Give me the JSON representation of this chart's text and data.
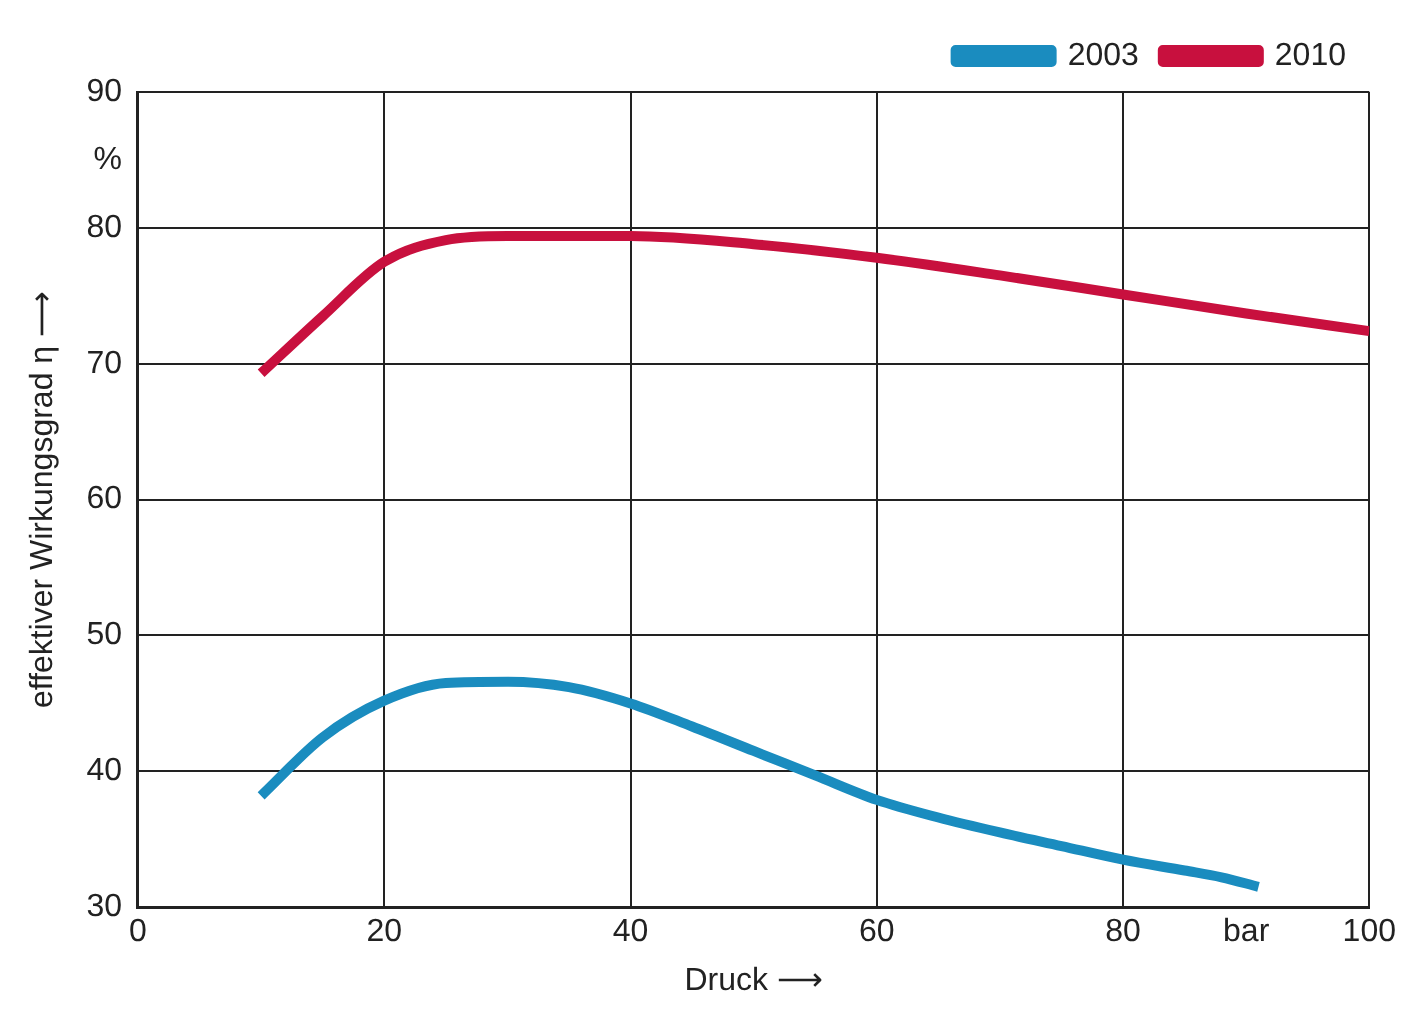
{
  "chart_data": {
    "type": "line",
    "xlabel": "Druck ⟶",
    "ylabel": "effektiver Wirkungsgrad η ⟶",
    "x": [
      10,
      15,
      20,
      25,
      30,
      35,
      40,
      45,
      50,
      55,
      60,
      65,
      70,
      75,
      80,
      85,
      88,
      91
    ],
    "series": [
      {
        "name": "2003",
        "color": "#1a8cbf",
        "values": [
          38.2,
          42.5,
          45.2,
          46.5,
          46.6,
          46.2,
          45.0,
          43.3,
          41.5,
          39.7,
          37.9,
          36.6,
          35.5,
          34.5,
          33.5,
          32.7,
          32.2,
          31.5
        ]
      },
      {
        "name": "2010",
        "color": "#c8103e",
        "x": [
          10,
          15,
          20,
          25,
          30,
          40,
          50,
          60,
          70,
          80,
          90,
          100
        ],
        "values": [
          69.3,
          73.5,
          77.5,
          79.1,
          79.4,
          79.4,
          78.8,
          77.8,
          76.5,
          75.1,
          73.7,
          72.4
        ]
      }
    ],
    "xlim": [
      0,
      100
    ],
    "xticks": [
      0,
      20,
      40,
      60,
      80,
      {
        "value": 90,
        "label": "bar"
      },
      100
    ],
    "ylim": [
      30,
      90
    ],
    "yticks": [
      30,
      40,
      50,
      60,
      70,
      80,
      {
        "value": 85,
        "label": "%"
      },
      90
    ],
    "grid": true,
    "legend": "top right",
    "marker": "none",
    "line_style": "solid"
  }
}
